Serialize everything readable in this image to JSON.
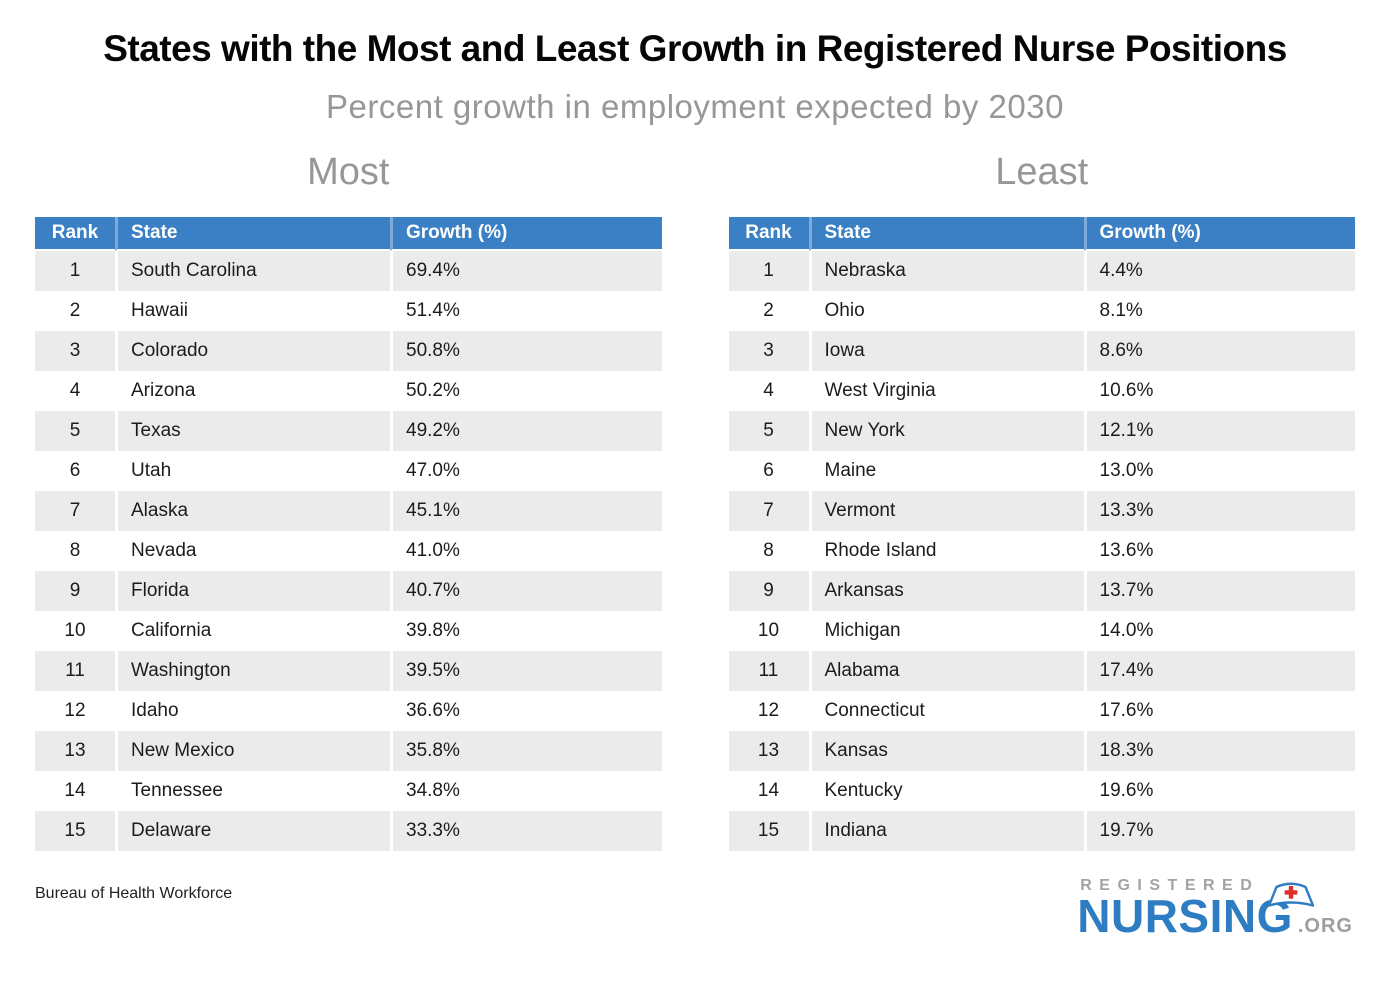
{
  "page": {
    "title": "States with the Most and Least Growth in Registered Nurse Positions",
    "subtitle": "Percent growth in employment expected by 2030",
    "source": "Bureau of Health Workforce"
  },
  "chart_data": [
    {
      "type": "table",
      "title": "Most",
      "columns": [
        "Rank",
        "State",
        "Growth (%)"
      ],
      "rows": [
        [
          "1",
          "South Carolina",
          "69.4%"
        ],
        [
          "2",
          "Hawaii",
          "51.4%"
        ],
        [
          "3",
          "Colorado",
          "50.8%"
        ],
        [
          "4",
          "Arizona",
          "50.2%"
        ],
        [
          "5",
          "Texas",
          "49.2%"
        ],
        [
          "6",
          "Utah",
          "47.0%"
        ],
        [
          "7",
          "Alaska",
          "45.1%"
        ],
        [
          "8",
          "Nevada",
          "41.0%"
        ],
        [
          "9",
          "Florida",
          "40.7%"
        ],
        [
          "10",
          "California",
          "39.8%"
        ],
        [
          "11",
          "Washington",
          "39.5%"
        ],
        [
          "12",
          "Idaho",
          "36.6%"
        ],
        [
          "13",
          "New Mexico",
          "35.8%"
        ],
        [
          "14",
          "Tennessee",
          "34.8%"
        ],
        [
          "15",
          "Delaware",
          "33.3%"
        ]
      ]
    },
    {
      "type": "table",
      "title": "Least",
      "columns": [
        "Rank",
        "State",
        "Growth (%)"
      ],
      "rows": [
        [
          "1",
          "Nebraska",
          "4.4%"
        ],
        [
          "2",
          "Ohio",
          "8.1%"
        ],
        [
          "3",
          "Iowa",
          "8.6%"
        ],
        [
          "4",
          "West Virginia",
          "10.6%"
        ],
        [
          "5",
          "New York",
          "12.1%"
        ],
        [
          "6",
          "Maine",
          "13.0%"
        ],
        [
          "7",
          "Vermont",
          "13.3%"
        ],
        [
          "8",
          "Rhode Island",
          "13.6%"
        ],
        [
          "9",
          "Arkansas",
          "13.7%"
        ],
        [
          "10",
          "Michigan",
          "14.0%"
        ],
        [
          "11",
          "Alabama",
          "17.4%"
        ],
        [
          "12",
          "Connecticut",
          "17.6%"
        ],
        [
          "13",
          "Kansas",
          "18.3%"
        ],
        [
          "14",
          "Kentucky",
          "19.6%"
        ],
        [
          "15",
          "Indiana",
          "19.7%"
        ]
      ]
    }
  ],
  "logo": {
    "registered": "REGISTERED",
    "nursing": "NURSING",
    "org": ".ORG"
  },
  "colors": {
    "header_blue": "#3b80c4",
    "row_stripe": "#ebebeb",
    "logo_blue": "#2e7dc2",
    "muted_gray": "#979797",
    "cross_red": "#dd2f26"
  }
}
